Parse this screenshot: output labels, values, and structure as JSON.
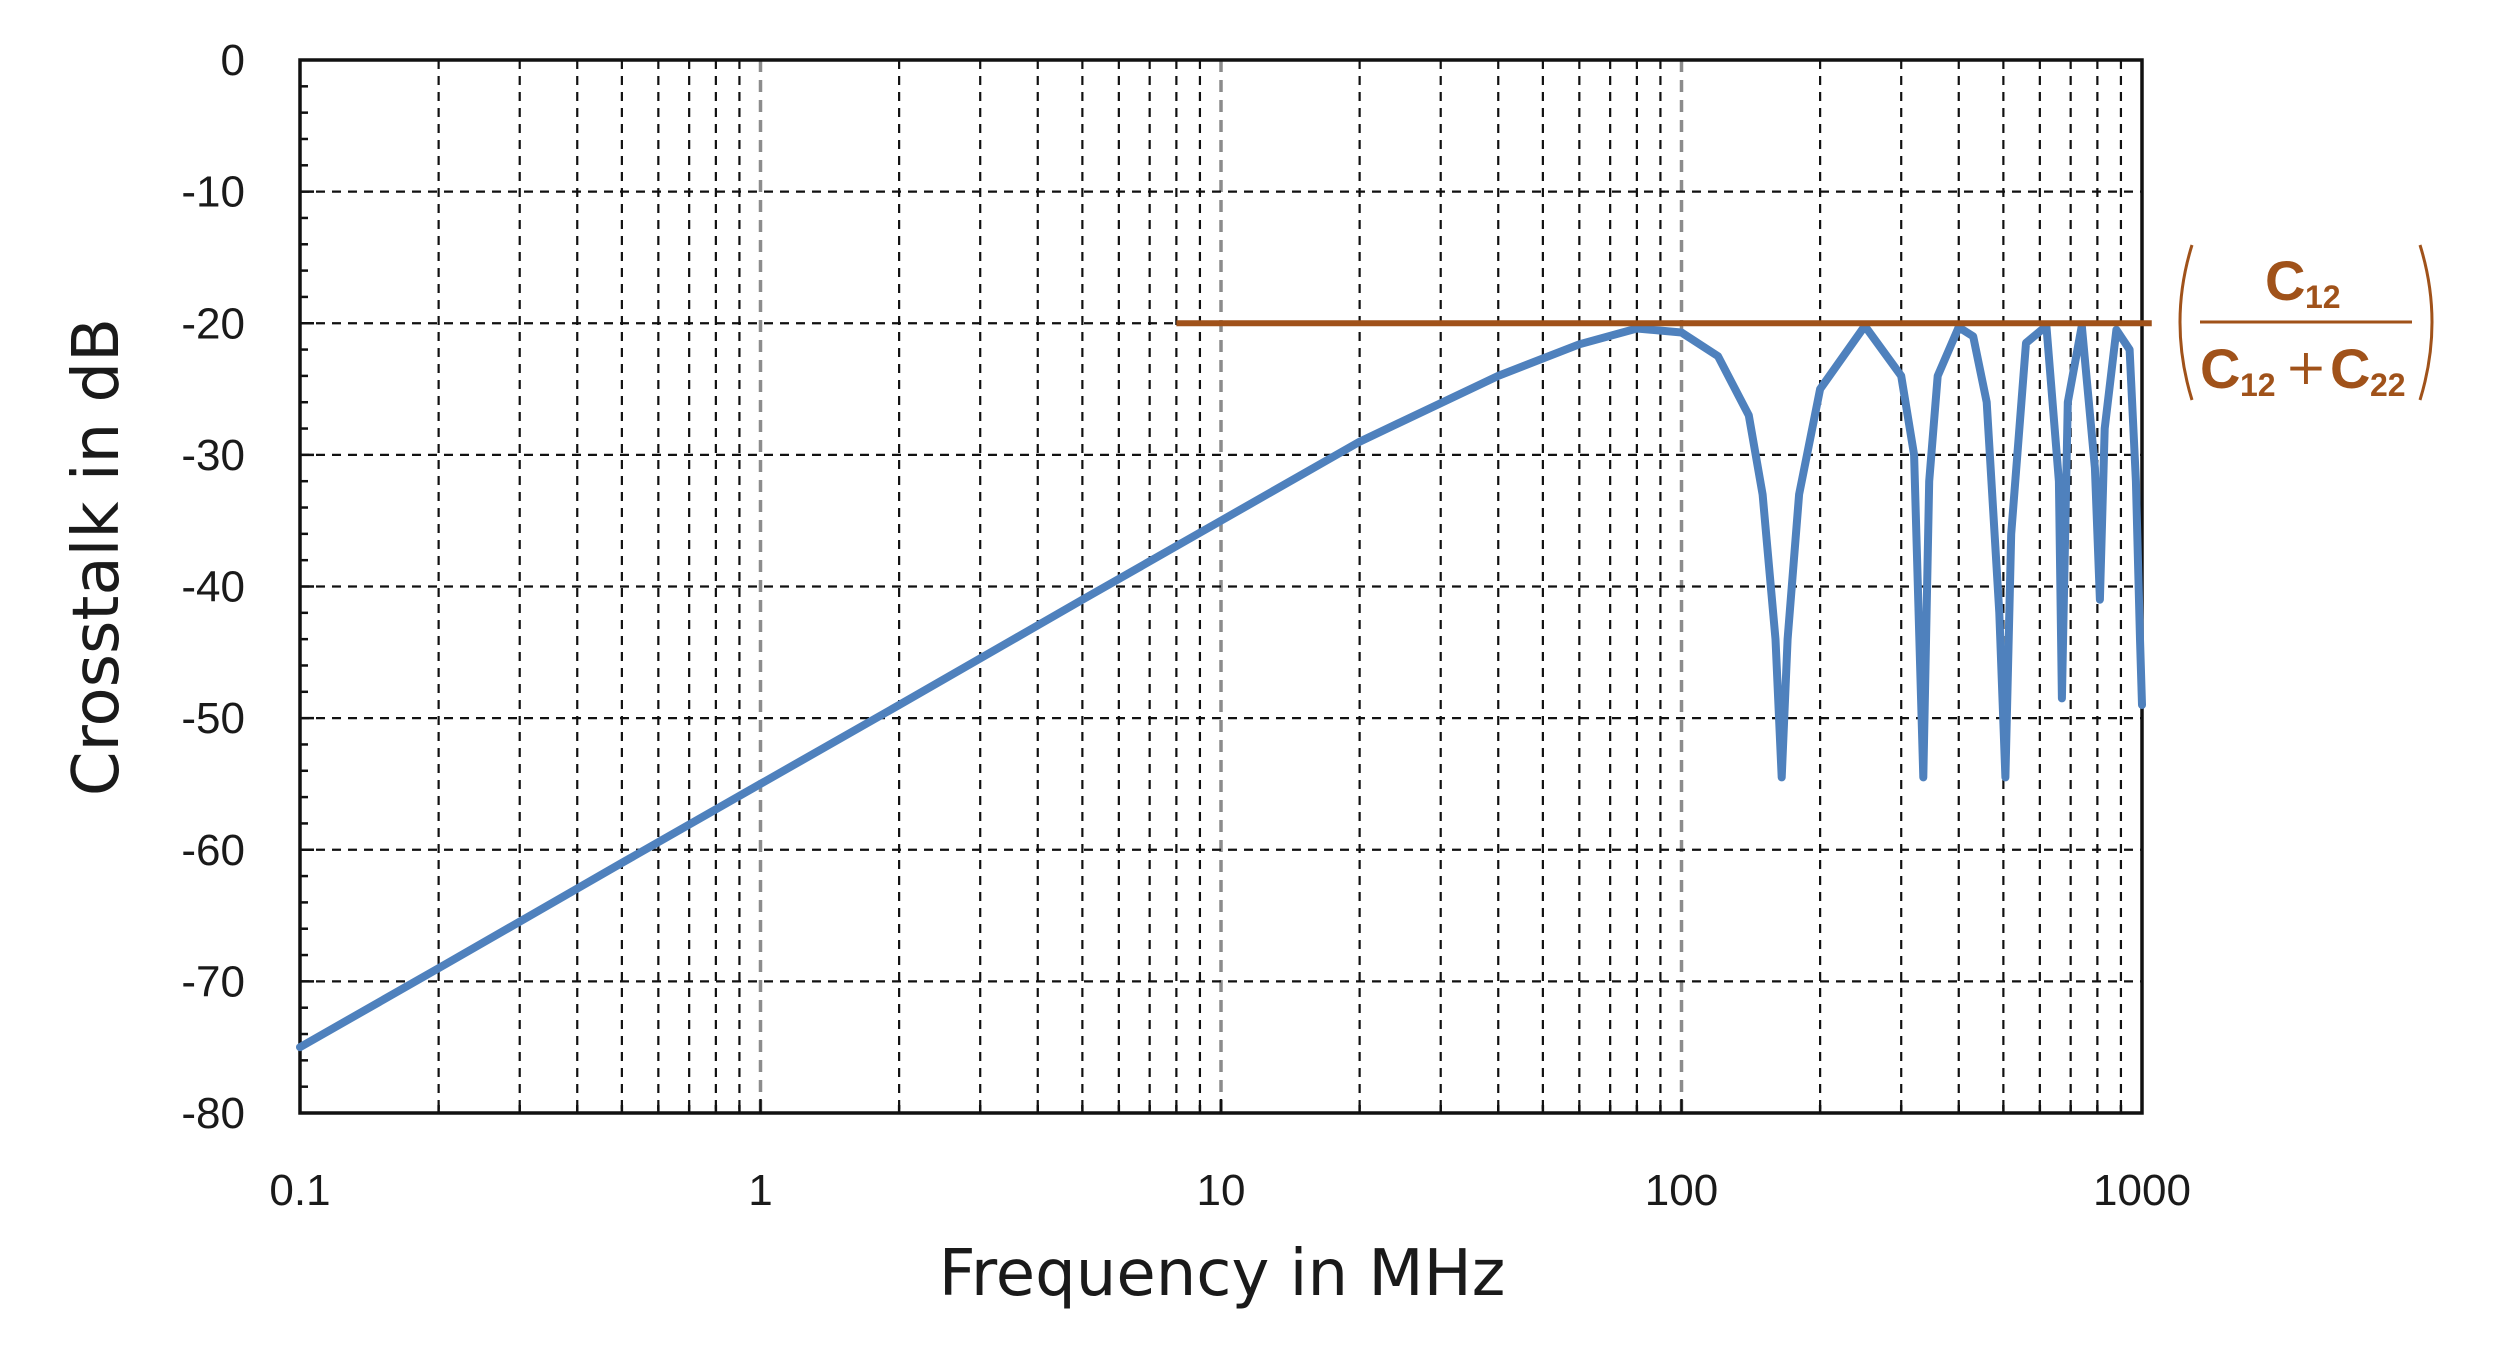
{
  "chart_data": {
    "type": "line",
    "title": "",
    "xlabel": "Frequency in MHz",
    "ylabel": "Crosstalk in dB",
    "x_scale": "log",
    "xlim": [
      0.1,
      1000
    ],
    "ylim": [
      -80,
      0
    ],
    "x_ticks": [
      0.1,
      1,
      10,
      100,
      1000
    ],
    "x_tick_labels": [
      "0.1",
      "1",
      "10",
      "100",
      "1000"
    ],
    "y_ticks": [
      0,
      -10,
      -20,
      -30,
      -40,
      -50,
      -60,
      -70,
      -80
    ],
    "y_tick_labels": [
      "0",
      "-10",
      "-20",
      "-30",
      "-40",
      "-50",
      "-60",
      "-70",
      "-80"
    ],
    "grid": true,
    "series": [
      {
        "color": "#4f81bd",
        "x": [
          0.1,
          0.2,
          0.5,
          1,
          2,
          5,
          10,
          20,
          40,
          60,
          80,
          100,
          120,
          140,
          150,
          160,
          165,
          170,
          180,
          200,
          250,
          300,
          320,
          335,
          345,
          360,
          400,
          430,
          460,
          490,
          505,
          520,
          560,
          620,
          660,
          670,
          690,
          740,
          790,
          810,
          830,
          880,
          940,
          970,
          990,
          1000
        ],
        "values": [
          -75,
          -69,
          -61,
          -55,
          -49,
          -41,
          -35,
          -29,
          -24,
          -21.6,
          -20.4,
          -20.7,
          -22.5,
          -27,
          -33,
          -44,
          -54.5,
          -44,
          -33,
          -25,
          -20.2,
          -24,
          -30,
          -54.5,
          -32,
          -24,
          -20.3,
          -21,
          -26,
          -42,
          -54.5,
          -36,
          -21.5,
          -20.2,
          -32,
          -48.5,
          -26,
          -20.2,
          -31,
          -41,
          -28,
          -20.5,
          -22,
          -32,
          -44,
          -49
        ]
      }
    ],
    "annotations": [
      {
        "type": "hline",
        "y": -20,
        "x_start": 8,
        "x_end": 1050,
        "color": "#a0521a",
        "label": {
          "numerator": "C",
          "numerator_sub": "12",
          "denominator_left": "C",
          "denominator_left_sub": "12",
          "operator": "+",
          "denominator_right": "C",
          "denominator_right_sub": "22"
        }
      }
    ]
  }
}
